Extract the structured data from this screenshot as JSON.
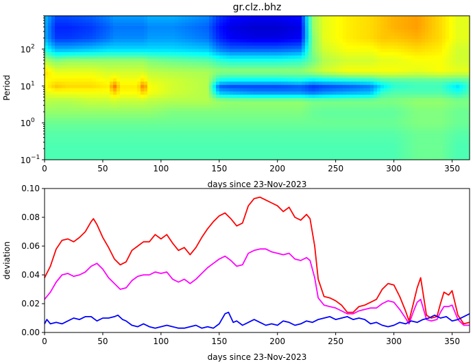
{
  "chart_data": [
    {
      "type": "heatmap",
      "title": "gr.clz..bhz",
      "xlabel": "days since 23-Nov-2023",
      "ylabel": "Period",
      "xlim": [
        0,
        365
      ],
      "xticks": [
        "0",
        "50",
        "100",
        "150",
        "200",
        "250",
        "300",
        "350"
      ],
      "ylim": [
        0.1,
        800
      ],
      "yscale": "log",
      "yticks": [
        "10^-1",
        "10^0",
        "10^1",
        "10^2"
      ],
      "colormap": "jet",
      "periods": [
        0.1,
        0.25,
        0.5,
        1,
        2,
        4,
        7,
        10,
        14,
        25,
        50,
        100,
        200,
        400,
        800
      ],
      "days": [
        0,
        10,
        20,
        40,
        55,
        60,
        65,
        80,
        85,
        90,
        110,
        140,
        150,
        160,
        180,
        200,
        220,
        230,
        240,
        260,
        280,
        290,
        300,
        320,
        340,
        355,
        365
      ],
      "values": [
        [
          0.45,
          0.45,
          0.45,
          0.45,
          0.45,
          0.45,
          0.45,
          0.45,
          0.45,
          0.45,
          0.45,
          0.45,
          0.45,
          0.45,
          0.45,
          0.45,
          0.45,
          0.45,
          0.45,
          0.45,
          0.45,
          0.45,
          0.45,
          0.48,
          0.48,
          0.45,
          0.45
        ],
        [
          0.45,
          0.45,
          0.45,
          0.45,
          0.45,
          0.45,
          0.45,
          0.45,
          0.45,
          0.45,
          0.45,
          0.45,
          0.45,
          0.45,
          0.45,
          0.45,
          0.45,
          0.45,
          0.45,
          0.45,
          0.45,
          0.45,
          0.45,
          0.48,
          0.48,
          0.45,
          0.45
        ],
        [
          0.46,
          0.46,
          0.46,
          0.46,
          0.46,
          0.46,
          0.46,
          0.46,
          0.46,
          0.46,
          0.46,
          0.46,
          0.46,
          0.46,
          0.46,
          0.46,
          0.46,
          0.46,
          0.46,
          0.46,
          0.46,
          0.46,
          0.46,
          0.48,
          0.48,
          0.46,
          0.46
        ],
        [
          0.48,
          0.48,
          0.48,
          0.48,
          0.48,
          0.48,
          0.48,
          0.48,
          0.48,
          0.48,
          0.48,
          0.48,
          0.48,
          0.48,
          0.48,
          0.48,
          0.48,
          0.48,
          0.48,
          0.48,
          0.48,
          0.48,
          0.48,
          0.5,
          0.5,
          0.48,
          0.48
        ],
        [
          0.52,
          0.52,
          0.52,
          0.52,
          0.52,
          0.52,
          0.52,
          0.52,
          0.52,
          0.52,
          0.5,
          0.5,
          0.5,
          0.5,
          0.5,
          0.5,
          0.5,
          0.48,
          0.47,
          0.47,
          0.47,
          0.47,
          0.47,
          0.5,
          0.5,
          0.48,
          0.48
        ],
        [
          0.56,
          0.55,
          0.55,
          0.57,
          0.57,
          0.58,
          0.57,
          0.57,
          0.57,
          0.56,
          0.55,
          0.55,
          0.53,
          0.52,
          0.52,
          0.52,
          0.52,
          0.5,
          0.5,
          0.5,
          0.5,
          0.5,
          0.5,
          0.52,
          0.52,
          0.5,
          0.5
        ],
        [
          0.6,
          0.62,
          0.62,
          0.62,
          0.62,
          0.68,
          0.63,
          0.63,
          0.68,
          0.62,
          0.58,
          0.55,
          0.3,
          0.28,
          0.25,
          0.25,
          0.25,
          0.22,
          0.25,
          0.28,
          0.3,
          0.42,
          0.45,
          0.45,
          0.45,
          0.4,
          0.45
        ],
        [
          0.62,
          0.68,
          0.66,
          0.66,
          0.64,
          0.76,
          0.64,
          0.64,
          0.76,
          0.62,
          0.58,
          0.55,
          0.22,
          0.2,
          0.2,
          0.2,
          0.22,
          0.18,
          0.2,
          0.22,
          0.25,
          0.35,
          0.42,
          0.44,
          0.44,
          0.35,
          0.44
        ],
        [
          0.62,
          0.64,
          0.64,
          0.64,
          0.62,
          0.66,
          0.62,
          0.62,
          0.66,
          0.6,
          0.58,
          0.55,
          0.38,
          0.36,
          0.36,
          0.36,
          0.38,
          0.34,
          0.36,
          0.38,
          0.4,
          0.44,
          0.45,
          0.46,
          0.46,
          0.45,
          0.46
        ],
        [
          0.66,
          0.6,
          0.6,
          0.6,
          0.58,
          0.58,
          0.58,
          0.58,
          0.58,
          0.56,
          0.55,
          0.54,
          0.52,
          0.52,
          0.52,
          0.52,
          0.52,
          0.55,
          0.58,
          0.62,
          0.62,
          0.62,
          0.62,
          0.6,
          0.62,
          0.6,
          0.6
        ],
        [
          0.55,
          0.5,
          0.52,
          0.52,
          0.52,
          0.52,
          0.52,
          0.52,
          0.52,
          0.5,
          0.48,
          0.46,
          0.42,
          0.4,
          0.4,
          0.4,
          0.42,
          0.48,
          0.55,
          0.58,
          0.58,
          0.6,
          0.6,
          0.62,
          0.62,
          0.58,
          0.58
        ],
        [
          0.4,
          0.3,
          0.3,
          0.32,
          0.34,
          0.34,
          0.34,
          0.34,
          0.34,
          0.34,
          0.34,
          0.32,
          0.25,
          0.22,
          0.22,
          0.22,
          0.24,
          0.5,
          0.58,
          0.62,
          0.62,
          0.64,
          0.64,
          0.66,
          0.64,
          0.58,
          0.58
        ],
        [
          0.3,
          0.18,
          0.18,
          0.2,
          0.24,
          0.26,
          0.26,
          0.26,
          0.26,
          0.28,
          0.28,
          0.24,
          0.16,
          0.12,
          0.1,
          0.1,
          0.12,
          0.5,
          0.6,
          0.64,
          0.66,
          0.68,
          0.68,
          0.7,
          0.66,
          0.6,
          0.6
        ],
        [
          0.3,
          0.16,
          0.16,
          0.18,
          0.22,
          0.24,
          0.24,
          0.24,
          0.24,
          0.26,
          0.26,
          0.22,
          0.14,
          0.1,
          0.08,
          0.08,
          0.1,
          0.52,
          0.6,
          0.64,
          0.66,
          0.68,
          0.7,
          0.72,
          0.66,
          0.6,
          0.6
        ],
        [
          0.32,
          0.2,
          0.2,
          0.22,
          0.26,
          0.28,
          0.28,
          0.28,
          0.28,
          0.3,
          0.3,
          0.26,
          0.18,
          0.14,
          0.12,
          0.12,
          0.14,
          0.52,
          0.6,
          0.64,
          0.66,
          0.68,
          0.7,
          0.72,
          0.66,
          0.6,
          0.6
        ]
      ]
    },
    {
      "type": "line",
      "title": "",
      "xlabel": "days since 23-Nov-2023",
      "ylabel": "deviation",
      "xlim": [
        0,
        365
      ],
      "ylim": [
        0,
        0.1
      ],
      "xticks": [
        "0",
        "50",
        "100",
        "150",
        "200",
        "250",
        "300",
        "350"
      ],
      "yticks": [
        "0.00",
        "0.02",
        "0.04",
        "0.06",
        "0.08",
        "0.10"
      ],
      "series": [
        {
          "color": "#ff0000",
          "x": [
            0,
            5,
            10,
            15,
            20,
            25,
            30,
            35,
            40,
            42,
            45,
            50,
            55,
            60,
            65,
            70,
            75,
            80,
            85,
            90,
            95,
            100,
            105,
            110,
            115,
            120,
            125,
            130,
            135,
            140,
            145,
            150,
            155,
            160,
            165,
            170,
            175,
            180,
            185,
            190,
            195,
            200,
            205,
            210,
            215,
            220,
            225,
            228,
            232,
            235,
            240,
            245,
            250,
            255,
            260,
            265,
            270,
            275,
            280,
            285,
            290,
            295,
            300,
            305,
            310,
            313,
            317,
            320,
            323,
            328,
            332,
            337,
            340,
            343,
            347,
            350,
            355,
            360,
            365
          ],
          "y": [
            0.038,
            0.046,
            0.058,
            0.064,
            0.065,
            0.063,
            0.066,
            0.07,
            0.077,
            0.079,
            0.075,
            0.066,
            0.059,
            0.051,
            0.047,
            0.049,
            0.057,
            0.06,
            0.063,
            0.063,
            0.068,
            0.065,
            0.068,
            0.062,
            0.057,
            0.059,
            0.054,
            0.059,
            0.066,
            0.072,
            0.077,
            0.081,
            0.083,
            0.079,
            0.074,
            0.076,
            0.088,
            0.093,
            0.094,
            0.092,
            0.09,
            0.088,
            0.084,
            0.087,
            0.08,
            0.078,
            0.082,
            0.079,
            0.06,
            0.037,
            0.025,
            0.024,
            0.022,
            0.019,
            0.014,
            0.014,
            0.018,
            0.019,
            0.021,
            0.023,
            0.03,
            0.034,
            0.033,
            0.025,
            0.015,
            0.008,
            0.021,
            0.031,
            0.038,
            0.012,
            0.01,
            0.011,
            0.02,
            0.028,
            0.026,
            0.029,
            0.012,
            0.006,
            0.007
          ]
        },
        {
          "color": "#ff00ff",
          "x": [
            0,
            5,
            10,
            15,
            20,
            25,
            30,
            35,
            40,
            45,
            50,
            55,
            60,
            65,
            70,
            75,
            80,
            85,
            90,
            95,
            100,
            105,
            110,
            115,
            120,
            125,
            130,
            135,
            140,
            145,
            150,
            155,
            160,
            165,
            170,
            175,
            180,
            185,
            190,
            195,
            200,
            205,
            210,
            215,
            220,
            225,
            228,
            232,
            235,
            240,
            245,
            250,
            255,
            260,
            265,
            270,
            275,
            280,
            285,
            290,
            295,
            300,
            305,
            310,
            313,
            317,
            320,
            323,
            328,
            332,
            337,
            340,
            343,
            347,
            350,
            355,
            360,
            365
          ],
          "y": [
            0.023,
            0.028,
            0.035,
            0.04,
            0.041,
            0.039,
            0.04,
            0.042,
            0.046,
            0.048,
            0.044,
            0.038,
            0.034,
            0.03,
            0.031,
            0.036,
            0.039,
            0.04,
            0.04,
            0.042,
            0.041,
            0.042,
            0.037,
            0.035,
            0.037,
            0.034,
            0.037,
            0.041,
            0.045,
            0.048,
            0.051,
            0.053,
            0.05,
            0.046,
            0.047,
            0.055,
            0.057,
            0.058,
            0.058,
            0.056,
            0.055,
            0.054,
            0.055,
            0.051,
            0.05,
            0.052,
            0.05,
            0.038,
            0.024,
            0.019,
            0.018,
            0.017,
            0.015,
            0.013,
            0.013,
            0.015,
            0.016,
            0.017,
            0.017,
            0.02,
            0.022,
            0.021,
            0.016,
            0.01,
            0.006,
            0.015,
            0.021,
            0.023,
            0.009,
            0.008,
            0.009,
            0.014,
            0.018,
            0.018,
            0.019,
            0.009,
            0.005,
            0.005
          ]
        },
        {
          "color": "#0000ff",
          "x": [
            0,
            2,
            5,
            10,
            15,
            20,
            25,
            30,
            35,
            40,
            45,
            50,
            55,
            60,
            63,
            67,
            70,
            75,
            80,
            85,
            90,
            95,
            100,
            105,
            110,
            115,
            120,
            125,
            130,
            135,
            140,
            145,
            150,
            155,
            158,
            162,
            165,
            170,
            175,
            180,
            185,
            190,
            195,
            200,
            205,
            210,
            215,
            220,
            225,
            230,
            235,
            240,
            245,
            250,
            255,
            260,
            265,
            270,
            275,
            280,
            285,
            290,
            295,
            300,
            305,
            310,
            315,
            320,
            325,
            330,
            335,
            340,
            345,
            350,
            355,
            360,
            365
          ],
          "y": [
            0.006,
            0.009,
            0.006,
            0.007,
            0.006,
            0.008,
            0.01,
            0.009,
            0.011,
            0.011,
            0.008,
            0.01,
            0.01,
            0.011,
            0.012,
            0.009,
            0.008,
            0.005,
            0.004,
            0.006,
            0.004,
            0.003,
            0.004,
            0.005,
            0.004,
            0.003,
            0.003,
            0.004,
            0.005,
            0.003,
            0.004,
            0.003,
            0.006,
            0.013,
            0.014,
            0.007,
            0.008,
            0.005,
            0.007,
            0.009,
            0.007,
            0.005,
            0.006,
            0.005,
            0.008,
            0.007,
            0.005,
            0.006,
            0.008,
            0.007,
            0.009,
            0.01,
            0.011,
            0.009,
            0.01,
            0.011,
            0.009,
            0.01,
            0.009,
            0.006,
            0.007,
            0.005,
            0.004,
            0.005,
            0.007,
            0.006,
            0.008,
            0.007,
            0.009,
            0.01,
            0.012,
            0.01,
            0.011,
            0.008,
            0.009,
            0.011,
            0.013
          ]
        }
      ]
    }
  ]
}
